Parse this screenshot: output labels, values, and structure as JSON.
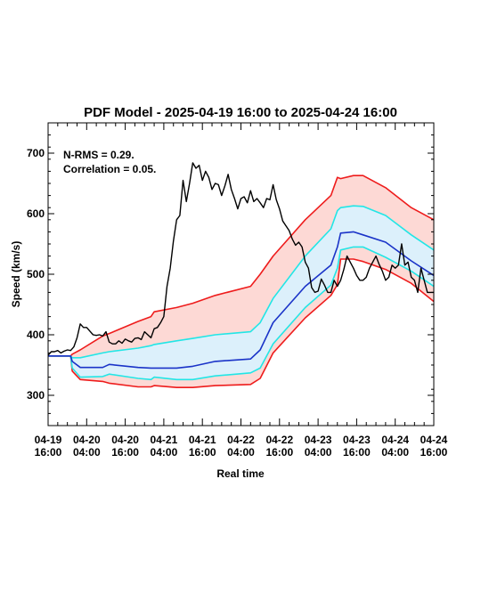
{
  "chart_data": {
    "type": "line",
    "title": "PDF Model - 2025-04-19 16:00 to 2025-04-24 16:00",
    "xlabel": "Real time",
    "ylabel": "Speed (km/s)",
    "xlim_hours": [
      0,
      120
    ],
    "ylim": [
      250,
      750
    ],
    "yticks": [
      300,
      400,
      500,
      600,
      700
    ],
    "xticks": [
      {
        "h": 0,
        "line1": "04-19",
        "line2": "16:00"
      },
      {
        "h": 12,
        "line1": "04-20",
        "line2": "04:00"
      },
      {
        "h": 24,
        "line1": "04-20",
        "line2": "16:00"
      },
      {
        "h": 36,
        "line1": "04-21",
        "line2": "04:00"
      },
      {
        "h": 48,
        "line1": "04-21",
        "line2": "16:00"
      },
      {
        "h": 60,
        "line1": "04-22",
        "line2": "04:00"
      },
      {
        "h": 72,
        "line1": "04-22",
        "line2": "16:00"
      },
      {
        "h": 84,
        "line1": "04-23",
        "line2": "04:00"
      },
      {
        "h": 96,
        "line1": "04-23",
        "line2": "16:00"
      },
      {
        "h": 108,
        "line1": "04-24",
        "line2": "04:00"
      },
      {
        "h": 120,
        "line1": "04-24",
        "line2": "16:00"
      }
    ],
    "annotations": [
      "N-RMS = 0.29.",
      "Correlation = 0.05."
    ],
    "colors": {
      "outer_band_fill": "#fdd9d5",
      "inner_band_fill": "#dcf0fb",
      "outer_line": "#ee1c1c",
      "inner_line": "#22e6e6",
      "median_line": "#1a33c8",
      "observed_line": "#000000"
    },
    "bands": {
      "x": [
        0,
        7,
        7.5,
        10,
        17,
        19,
        28,
        32,
        33,
        40,
        45,
        52,
        63,
        66,
        70,
        80,
        88,
        90,
        91,
        95,
        98,
        105,
        113,
        120
      ],
      "outer_upper": [
        365,
        365,
        368,
        375,
        398,
        402,
        422,
        430,
        438,
        445,
        452,
        465,
        480,
        500,
        530,
        590,
        630,
        660,
        658,
        663,
        663,
        643,
        610,
        590
      ],
      "inner_upper": [
        365,
        365,
        362,
        362,
        370,
        372,
        378,
        382,
        384,
        390,
        394,
        400,
        405,
        420,
        460,
        530,
        575,
        605,
        610,
        613,
        612,
        597,
        565,
        540
      ],
      "median": [
        365,
        365,
        356,
        346,
        346,
        351,
        346,
        345,
        345,
        345,
        348,
        356,
        360,
        375,
        420,
        480,
        515,
        545,
        568,
        570,
        565,
        553,
        522,
        498
      ],
      "inner_lower": [
        365,
        365,
        345,
        330,
        331,
        335,
        328,
        326,
        330,
        326,
        326,
        332,
        337,
        345,
        385,
        445,
        482,
        510,
        540,
        545,
        545,
        528,
        505,
        480
      ],
      "outer_lower": [
        365,
        365,
        340,
        326,
        323,
        320,
        314,
        314,
        316,
        313,
        313,
        316,
        318,
        328,
        370,
        428,
        465,
        483,
        525,
        525,
        521,
        508,
        485,
        455
      ]
    },
    "observed": {
      "x": [
        0,
        1,
        2,
        3,
        4,
        5,
        6,
        7,
        8,
        9,
        10,
        11,
        12,
        13,
        14,
        15,
        16,
        17,
        18,
        19,
        20,
        21,
        22,
        23,
        24,
        25,
        26,
        27,
        28,
        29,
        30,
        31,
        32,
        33,
        34,
        35,
        36,
        37,
        38,
        39,
        40,
        41,
        42,
        43,
        44,
        45,
        46,
        47,
        48,
        49,
        50,
        51,
        52,
        53,
        54,
        55,
        56,
        57,
        58,
        59,
        60,
        61,
        62,
        63,
        64,
        65,
        66,
        67,
        68,
        69,
        70,
        71,
        72,
        73,
        74,
        75,
        76,
        77,
        78,
        79,
        80,
        81,
        82,
        83,
        84,
        85,
        86,
        87,
        88,
        89,
        90,
        91,
        92,
        93,
        94,
        95,
        96,
        97,
        98,
        99,
        100,
        101,
        102,
        103,
        104,
        105,
        106,
        107,
        108,
        109,
        110,
        111,
        112,
        113,
        114,
        115,
        116,
        117,
        118,
        119,
        120
      ],
      "y": [
        366,
        372,
        372,
        374,
        370,
        373,
        375,
        374,
        380,
        395,
        418,
        412,
        412,
        406,
        400,
        399,
        400,
        398,
        405,
        388,
        385,
        385,
        390,
        386,
        393,
        390,
        388,
        394,
        395,
        392,
        405,
        400,
        395,
        410,
        412,
        420,
        430,
        480,
        510,
        555,
        590,
        597,
        655,
        620,
        650,
        684,
        675,
        680,
        655,
        670,
        660,
        640,
        650,
        648,
        630,
        646,
        665,
        640,
        625,
        608,
        625,
        628,
        618,
        638,
        620,
        625,
        618,
        610,
        625,
        623,
        648,
        623,
        608,
        588,
        580,
        572,
        558,
        548,
        553,
        545,
        520,
        510,
        478,
        470,
        472,
        492,
        482,
        470,
        470,
        490,
        480,
        490,
        508,
        530,
        520,
        510,
        498,
        490,
        490,
        495,
        510,
        520,
        530,
        516,
        505,
        490,
        495,
        515,
        510,
        515,
        550,
        515,
        520,
        495,
        490,
        470,
        510,
        490,
        470,
        470,
        470
      ]
    }
  }
}
